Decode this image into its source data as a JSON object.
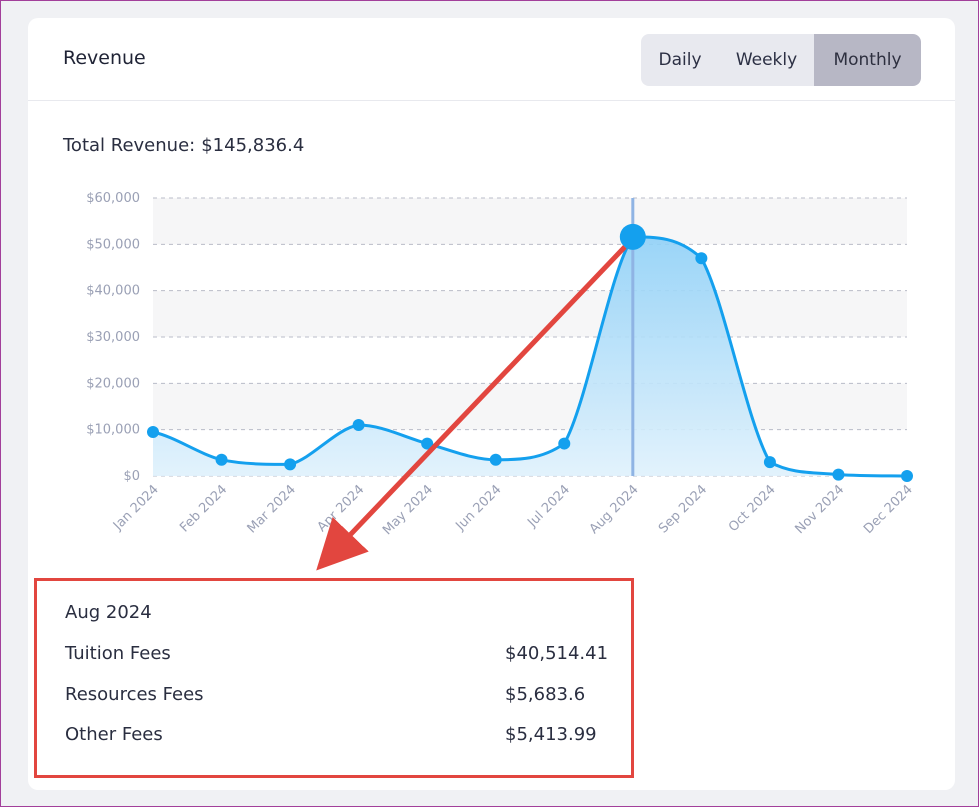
{
  "card": {
    "title": "Revenue",
    "toggle": [
      "Daily",
      "Weekly",
      "Monthly"
    ],
    "active_toggle": "Monthly"
  },
  "total": {
    "label": "Total Revenue:",
    "value": "$145,836.4"
  },
  "chart_data": {
    "type": "area",
    "categories": [
      "Jan 2024",
      "Feb 2024",
      "Mar 2024",
      "Apr 2024",
      "May 2024",
      "Jun 2024",
      "Jul 2024",
      "Aug 2024",
      "Sep 2024",
      "Oct 2024",
      "Nov 2024",
      "Dec 2024"
    ],
    "values": [
      9500,
      3500,
      2500,
      11000,
      7000,
      3500,
      7000,
      51612,
      47000,
      3000,
      300,
      0
    ],
    "ylim": [
      0,
      60000
    ],
    "yticks": [
      0,
      10000,
      20000,
      30000,
      40000,
      50000,
      60000
    ],
    "ytick_labels": [
      "$0",
      "$10,000",
      "$20,000",
      "$30,000",
      "$40,000",
      "$50,000",
      "$60,000"
    ],
    "highlight_index": 7,
    "grid": true,
    "colors": {
      "line": "#14a0ee",
      "fill_top": "#8fd0f7",
      "fill_bottom": "#dff1fc",
      "band": "#f6f6f7",
      "crosshair": "#8fb4e4"
    }
  },
  "tooltip": {
    "title": "Aug 2024",
    "rows": [
      {
        "label": "Tuition Fees",
        "value": "$40,514.41"
      },
      {
        "label": "Resources Fees",
        "value": "$5,683.6"
      },
      {
        "label": "Other Fees",
        "value": "$5,413.99"
      }
    ]
  },
  "annotation": {
    "color": "#e2463f"
  }
}
